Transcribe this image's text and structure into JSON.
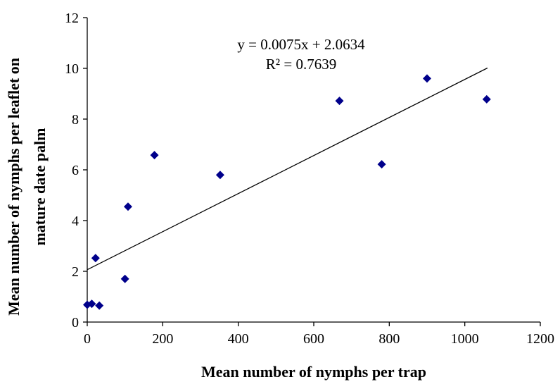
{
  "chart_data": {
    "type": "scatter",
    "xlabel": "Mean number of nymphs per trap",
    "ylabel": "Mean number of nymphs per leaflet on mature date palm",
    "ylabel_lines": [
      "Mean number of nymphs per leaflet on",
      "mature date palm"
    ],
    "xlim": [
      0,
      1200
    ],
    "ylim": [
      0,
      12
    ],
    "x_ticks": [
      0,
      200,
      400,
      600,
      800,
      1000,
      1200
    ],
    "y_ticks": [
      0,
      2,
      4,
      6,
      8,
      10,
      12
    ],
    "grid": false,
    "legend": "none",
    "marker_color": "#00008B",
    "points": [
      {
        "x": 0,
        "y": 0.68
      },
      {
        "x": 12,
        "y": 0.72
      },
      {
        "x": 22,
        "y": 2.52
      },
      {
        "x": 32,
        "y": 0.65
      },
      {
        "x": 100,
        "y": 1.7
      },
      {
        "x": 108,
        "y": 4.55
      },
      {
        "x": 178,
        "y": 6.58
      },
      {
        "x": 352,
        "y": 5.8
      },
      {
        "x": 668,
        "y": 8.72
      },
      {
        "x": 780,
        "y": 6.22
      },
      {
        "x": 900,
        "y": 9.6
      },
      {
        "x": 1058,
        "y": 8.78
      }
    ],
    "trendline": {
      "slope": 0.0075,
      "intercept": 2.0634,
      "x_range": [
        0,
        1060
      ],
      "equation_text": "y = 0.0075x + 2.0634",
      "r2_text": "R² = 0.7639"
    }
  }
}
